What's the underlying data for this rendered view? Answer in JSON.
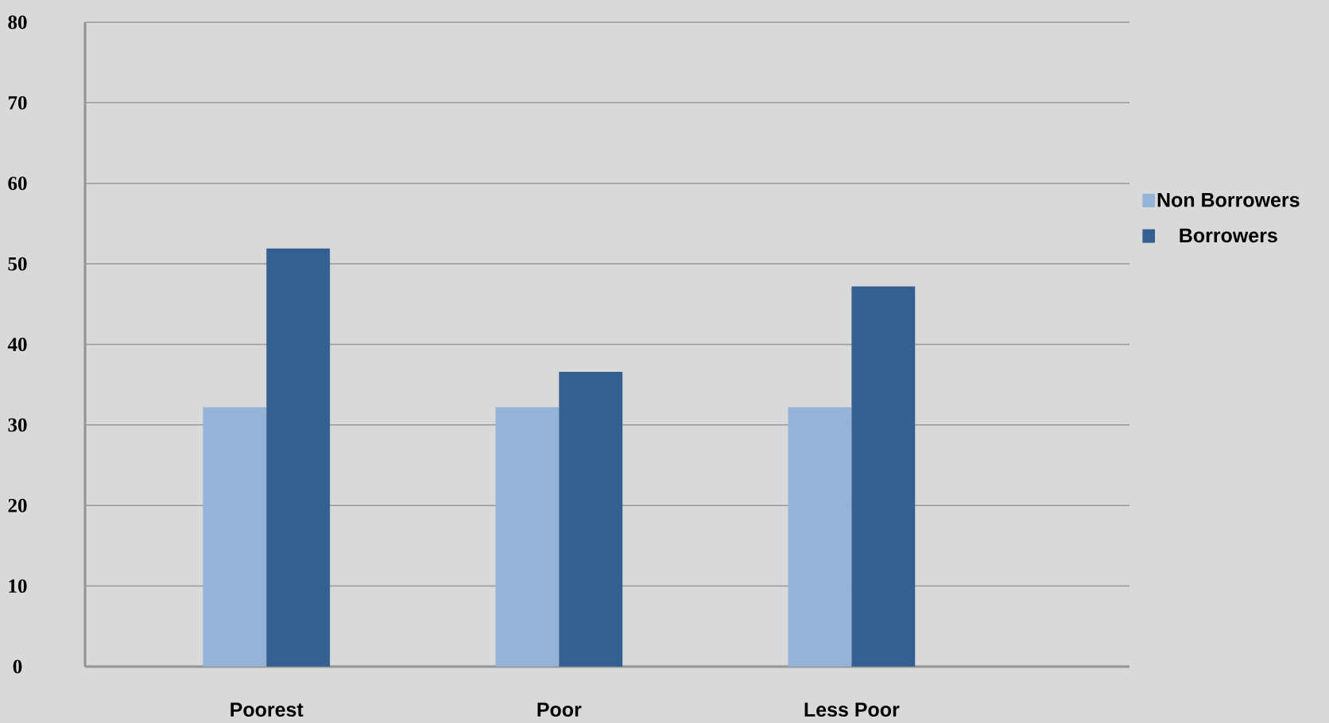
{
  "chart_data": {
    "type": "bar",
    "categories": [
      "Poorest",
      "Poor",
      "Less Poor"
    ],
    "series": [
      {
        "name": "Non Borrowers",
        "color": "#95b3d7",
        "values": [
          32.2,
          32.2,
          32.2
        ]
      },
      {
        "name": "Borrowers",
        "color": "#335f91",
        "values": [
          51.9,
          36.6,
          47.2
        ]
      }
    ],
    "ylim": [
      0,
      80
    ],
    "yticks": [
      0,
      10,
      20,
      30,
      40,
      50,
      60,
      70,
      80
    ],
    "grid": "y",
    "legend": "right"
  }
}
